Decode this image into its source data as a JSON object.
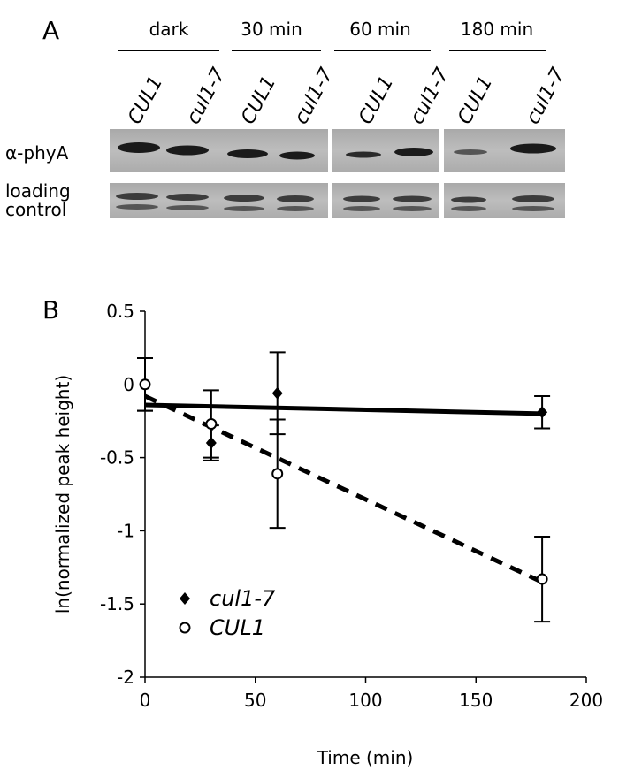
{
  "panel_a": {
    "letter": "A",
    "time_groups": [
      "dark",
      "30 min",
      "60 min",
      "180 min"
    ],
    "lane_labels": [
      "CUL1",
      "cul1-7",
      "CUL1",
      "cul1-7",
      "CUL1",
      "cul1-7",
      "CUL1",
      "cul1-7"
    ],
    "row_labels": {
      "phya": "α-phyA",
      "loading_line1": "loading",
      "loading_line2": "control"
    }
  },
  "panel_b": {
    "letter": "B"
  },
  "chart_data": {
    "type": "scatter",
    "xlabel": "Time (min)",
    "ylabel": "ln(normalized peak height)",
    "xlim": [
      0,
      200
    ],
    "ylim": [
      -2,
      0.5
    ],
    "x_ticks": [
      "0",
      "50",
      "100",
      "150",
      "200"
    ],
    "y_ticks": [
      "0.5",
      "0",
      "-0.5",
      "-1",
      "-1.5",
      "-2"
    ],
    "grid": false,
    "legend_position": "bottom-left",
    "series": [
      {
        "name": "cul1-7",
        "marker": "diamond-filled",
        "x": [
          0,
          30,
          60,
          180
        ],
        "y": [
          0,
          -0.4,
          -0.06,
          -0.19
        ],
        "err": [
          0.18,
          0.12,
          0.28,
          0.11
        ],
        "trend": {
          "style": "solid",
          "x": [
            0,
            180
          ],
          "y": [
            -0.14,
            -0.2
          ]
        }
      },
      {
        "name": "CUL1",
        "marker": "circle-open",
        "x": [
          0,
          30,
          60,
          180
        ],
        "y": [
          0,
          -0.27,
          -0.61,
          -1.33
        ],
        "err": [
          0.18,
          0.23,
          0.37,
          0.29
        ],
        "trend": {
          "style": "dashed",
          "x": [
            0,
            180
          ],
          "y": [
            -0.08,
            -1.35
          ]
        }
      }
    ]
  }
}
